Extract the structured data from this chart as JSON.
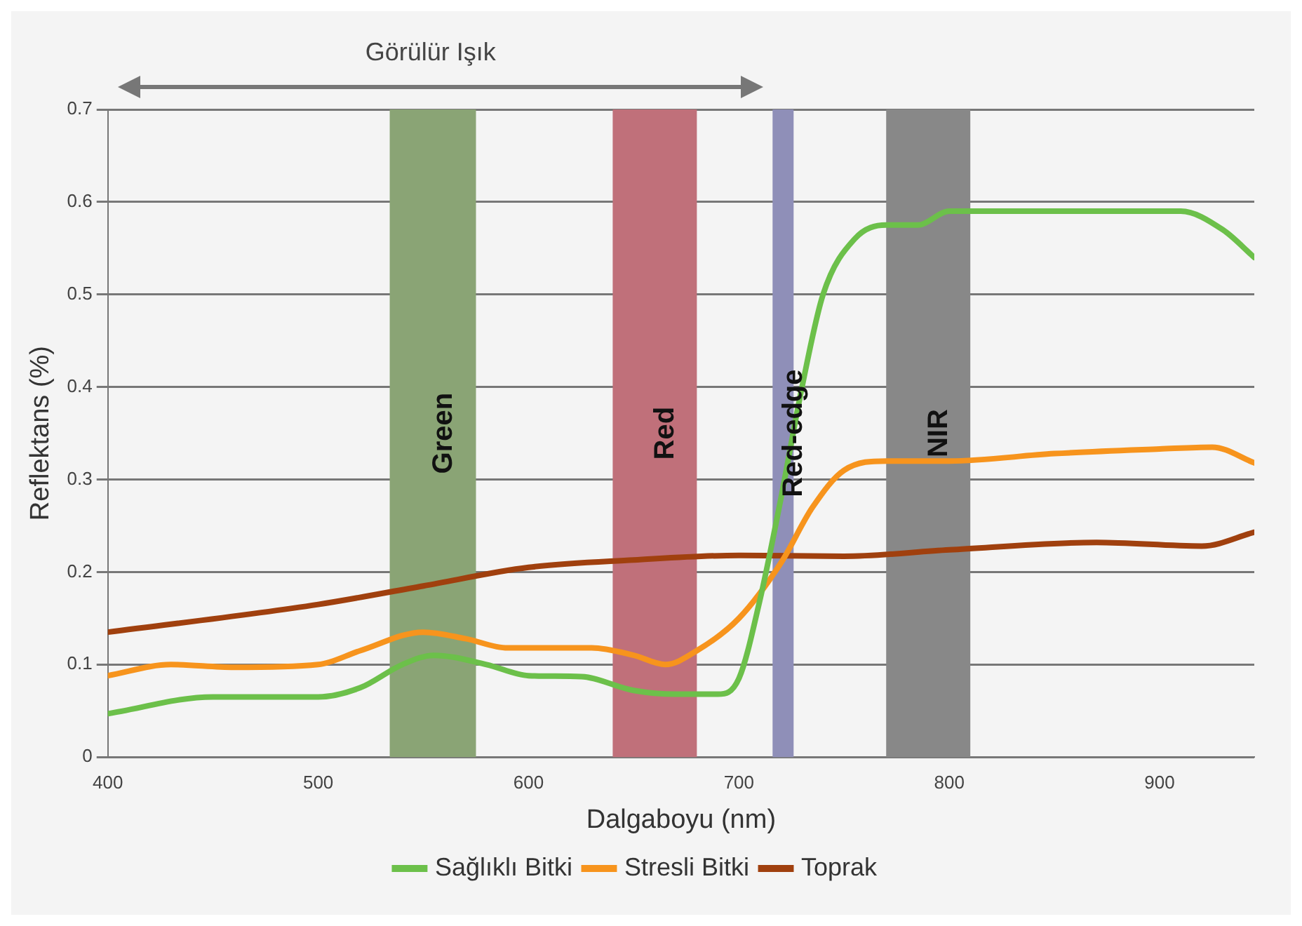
{
  "chart_data": {
    "type": "line",
    "xlabel": "Dalgaboyu (nm)",
    "ylabel": "Reflektans (%)",
    "xlim": [
      400,
      945
    ],
    "xticks": [
      400,
      500,
      600,
      700,
      800,
      900
    ],
    "ylim": [
      0,
      0.7
    ],
    "yticks": [
      0,
      0.1,
      0.2,
      0.3,
      0.4,
      0.5,
      0.6,
      0.7
    ],
    "grid": "y",
    "legend": "bottom",
    "marker": "none",
    "line_style": "solid",
    "series": [
      {
        "name": "Sağlıklı Bitki",
        "color": "#6cc04a",
        "x": [
          400,
          450,
          500,
          520,
          540,
          555,
          580,
          600,
          625,
          650,
          670,
          690,
          700,
          710,
          720,
          730,
          740,
          755,
          770,
          785,
          800,
          850,
          910,
          930,
          945
        ],
        "values": [
          0.047,
          0.065,
          0.065,
          0.075,
          0.1,
          0.11,
          0.1,
          0.088,
          0.087,
          0.072,
          0.068,
          0.068,
          0.085,
          0.17,
          0.28,
          0.4,
          0.5,
          0.56,
          0.575,
          0.575,
          0.59,
          0.59,
          0.59,
          0.57,
          0.54
        ]
      },
      {
        "name": "Stresli Bitki",
        "color": "#f7941d",
        "x": [
          400,
          430,
          460,
          500,
          520,
          550,
          570,
          590,
          630,
          650,
          665,
          680,
          700,
          720,
          735,
          750,
          770,
          800,
          850,
          900,
          925,
          945
        ],
        "values": [
          0.088,
          0.1,
          0.097,
          0.1,
          0.115,
          0.135,
          0.128,
          0.118,
          0.118,
          0.11,
          0.1,
          0.115,
          0.15,
          0.21,
          0.27,
          0.31,
          0.32,
          0.32,
          0.328,
          0.333,
          0.335,
          0.318
        ]
      },
      {
        "name": "Toprak",
        "color": "#a0400e",
        "x": [
          400,
          500,
          550,
          600,
          650,
          700,
          750,
          800,
          870,
          920,
          945
        ],
        "values": [
          0.135,
          0.165,
          0.185,
          0.205,
          0.213,
          0.218,
          0.217,
          0.224,
          0.232,
          0.228,
          0.243
        ]
      }
    ],
    "bands": [
      {
        "axis": "x",
        "from": 534,
        "to": 575,
        "label": "Green",
        "color": "#8aa475"
      },
      {
        "axis": "x",
        "from": 640,
        "to": 680,
        "label": "Red",
        "color": "#c0707a"
      },
      {
        "axis": "x",
        "from": 716,
        "to": 726,
        "label": "Red-edge",
        "color": "#8f8fb8"
      },
      {
        "axis": "x",
        "from": 770,
        "to": 810,
        "label": "NIR",
        "color": "#888888"
      }
    ],
    "annotations": [
      "Görülür Işık"
    ]
  }
}
